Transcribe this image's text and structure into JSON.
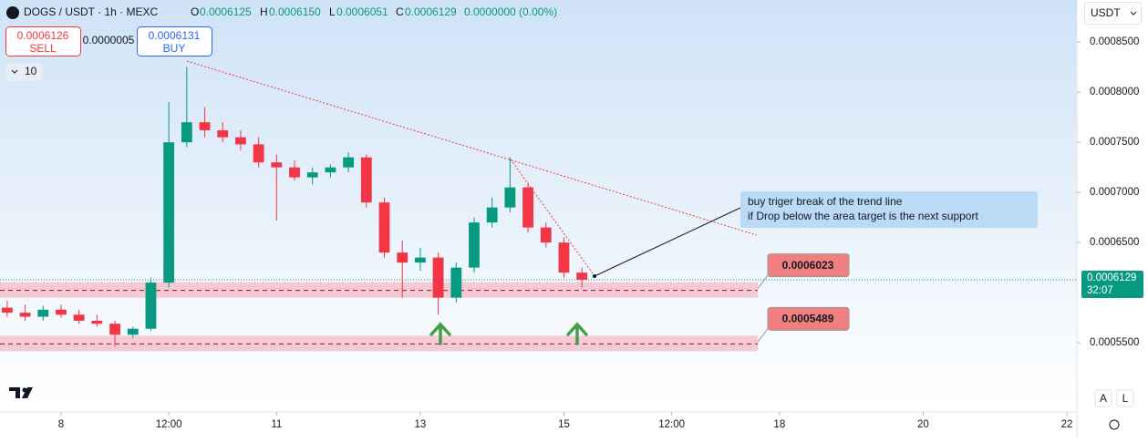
{
  "header": {
    "symbol": "DOGS / USDT · 1h · MEXC",
    "open_label": "O",
    "open": "0.0006125",
    "high_label": "H",
    "high": "0.0006150",
    "low_label": "L",
    "low": "0.0006051",
    "close_label": "C",
    "close": "0.0006129",
    "change": "0.0000000 (0.00%)"
  },
  "trade": {
    "sell_price": "0.0006126",
    "sell": "SELL",
    "spread": "0.0000005",
    "buy_price": "0.0006131",
    "buy": "BUY"
  },
  "indicators_count": "10",
  "currency": "USDT",
  "countdown": "32:07",
  "annotation": [
    "buy triger break of the trend line",
    "if Drop below the area target is the next support"
  ],
  "scale_buttons": [
    "A",
    "L"
  ],
  "chart_data": {
    "type": "candlestick",
    "up_color": "#089981",
    "down_color": "#f23645",
    "x": [
      -0.75,
      -0.5,
      -0.25,
      0,
      0.25,
      0.5,
      0.75,
      1,
      1.25,
      1.5,
      1.75,
      2,
      2.25,
      2.5,
      2.75,
      3,
      3.25,
      3.5,
      3.75,
      4,
      4.25,
      4.5,
      4.75,
      5,
      5.25,
      5.5,
      5.75,
      6,
      6.25,
      6.5,
      6.75,
      7,
      7.25
    ],
    "open": [
      0.000585,
      0.00058,
      0.000576,
      0.000583,
      0.000578,
      0.000572,
      0.000569,
      0.000558,
      0.000564,
      0.00061,
      0.00075,
      0.00077,
      0.000762,
      0.000755,
      0.000748,
      0.00073,
      0.000725,
      0.000715,
      0.00072,
      0.000725,
      0.000735,
      0.00069,
      0.00064,
      0.00063,
      0.000635,
      0.000595,
      0.000625,
      0.00067,
      0.000685,
      0.000705,
      0.000665,
      0.00065,
      0.00062
    ],
    "high": [
      0.000592,
      0.000588,
      0.000587,
      0.000588,
      0.000583,
      0.000578,
      0.000572,
      0.000566,
      0.000615,
      0.00079,
      0.000825,
      0.000785,
      0.00077,
      0.000762,
      0.000755,
      0.000738,
      0.000732,
      0.000725,
      0.000728,
      0.00074,
      0.000738,
      0.000695,
      0.000652,
      0.000645,
      0.00064,
      0.00063,
      0.000675,
      0.000695,
      0.000735,
      0.00071,
      0.00067,
      0.000655,
      0.000625
    ],
    "low": [
      0.000576,
      0.000572,
      0.000572,
      0.000575,
      0.000569,
      0.000566,
      0.000546,
      0.000555,
      0.000562,
      0.000605,
      0.000745,
      0.000755,
      0.00075,
      0.000742,
      0.000725,
      0.000672,
      0.000712,
      0.000708,
      0.000715,
      0.00072,
      0.000685,
      0.000635,
      0.000595,
      0.000622,
      0.000578,
      0.00059,
      0.00062,
      0.000665,
      0.00068,
      0.00066,
      0.000645,
      0.000615,
      0.000605
    ],
    "close": [
      0.00058,
      0.000576,
      0.000583,
      0.000578,
      0.000572,
      0.000569,
      0.000558,
      0.000564,
      0.00061,
      0.00075,
      0.00077,
      0.000762,
      0.000755,
      0.000748,
      0.00073,
      0.000725,
      0.000715,
      0.00072,
      0.000725,
      0.000735,
      0.00069,
      0.00064,
      0.00063,
      0.000635,
      0.000595,
      0.000625,
      0.00067,
      0.000685,
      0.000705,
      0.000665,
      0.00065,
      0.00062,
      0.0006129
    ],
    "levels": [
      0.0006023,
      0.0005489
    ],
    "last_price": 0.0006129,
    "xlim": [
      -0.85,
      14.14
    ],
    "xticks": [
      {
        "value": 0,
        "label": "8"
      },
      {
        "value": 1.5,
        "label": "12:00"
      },
      {
        "value": 3,
        "label": "11"
      },
      {
        "value": 5,
        "label": "13"
      },
      {
        "value": 7,
        "label": "15"
      },
      {
        "value": 8.5,
        "label": "12:00"
      },
      {
        "value": 10,
        "label": "18"
      },
      {
        "value": 12,
        "label": "20"
      },
      {
        "value": 14,
        "label": "22"
      }
    ],
    "ylim": [
      0.000481,
      0.000892
    ],
    "yticks": [
      {
        "value": 0.00055,
        "label": "0.0005500"
      },
      {
        "value": 0.00065,
        "label": "0.0006500"
      },
      {
        "value": 0.0007,
        "label": "0.0007000"
      },
      {
        "value": 0.00075,
        "label": "0.0007500"
      },
      {
        "value": 0.0008,
        "label": "0.0008000"
      },
      {
        "value": 0.00085,
        "label": "0.0008500"
      }
    ]
  }
}
